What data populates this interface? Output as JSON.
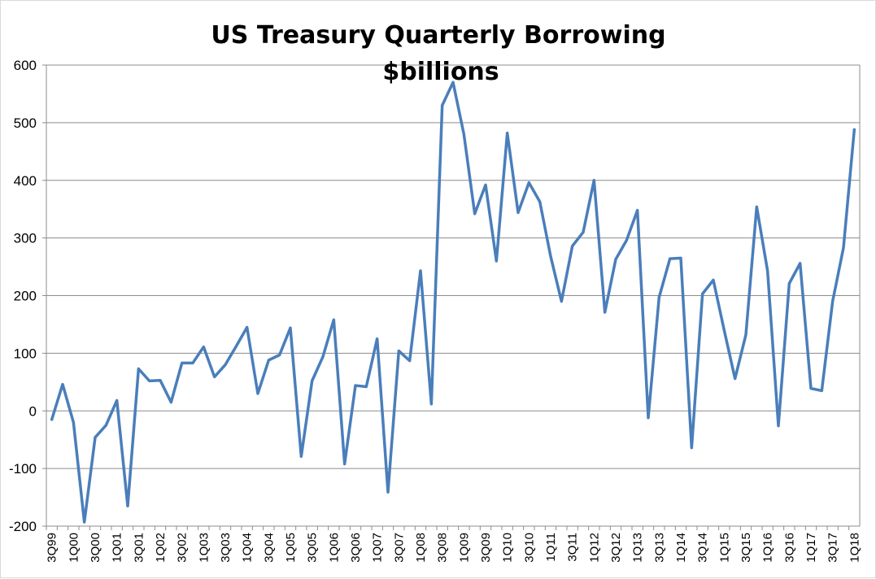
{
  "chart_data": {
    "type": "line",
    "title": "US Treasury Quarterly Borrowing",
    "subtitle": "$billions",
    "xlabel": "",
    "ylabel": "",
    "ylim": [
      -200,
      600
    ],
    "yticks": [
      -200,
      -100,
      0,
      100,
      200,
      300,
      400,
      500,
      600
    ],
    "grid": true,
    "legend": "none",
    "line_color": "#4a7ebb",
    "categories": [
      "3Q99",
      "4Q99",
      "1Q00",
      "2Q00",
      "3Q00",
      "4Q00",
      "1Q01",
      "2Q01",
      "3Q01",
      "4Q01",
      "1Q02",
      "2Q02",
      "3Q02",
      "4Q02",
      "1Q03",
      "2Q03",
      "3Q03",
      "4Q03",
      "1Q04",
      "2Q04",
      "3Q04",
      "4Q04",
      "1Q05",
      "2Q05",
      "3Q05",
      "4Q05",
      "1Q06",
      "2Q06",
      "3Q06",
      "4Q06",
      "1Q07",
      "2Q07",
      "3Q07",
      "4Q07",
      "1Q08",
      "2Q08",
      "3Q08",
      "4Q08",
      "1Q09",
      "2Q09",
      "3Q09",
      "4Q09",
      "1Q10",
      "2Q10",
      "3Q10",
      "4Q10",
      "1Q11",
      "2Q11",
      "3Q11",
      "4Q11",
      "1Q12",
      "2Q12",
      "3Q12",
      "4Q12",
      "1Q13",
      "2Q13",
      "3Q13",
      "4Q13",
      "1Q14",
      "2Q14",
      "3Q14",
      "4Q14",
      "1Q15",
      "2Q15",
      "3Q15",
      "4Q15",
      "1Q16",
      "2Q16",
      "3Q16",
      "4Q16",
      "1Q17",
      "2Q17",
      "3Q17",
      "4Q17",
      "1Q18"
    ],
    "tick_labels": [
      "3Q99",
      "1Q00",
      "3Q00",
      "1Q01",
      "3Q01",
      "1Q02",
      "3Q02",
      "1Q03",
      "3Q03",
      "1Q04",
      "3Q04",
      "1Q05",
      "3Q05",
      "1Q06",
      "3Q06",
      "1Q07",
      "3Q07",
      "1Q08",
      "3Q08",
      "1Q09",
      "3Q09",
      "1Q10",
      "3Q10",
      "1Q11",
      "3Q11",
      "1Q12",
      "3Q12",
      "1Q13",
      "3Q13",
      "1Q14",
      "3Q14",
      "1Q15",
      "3Q15",
      "1Q16",
      "3Q16",
      "1Q17",
      "3Q17",
      "1Q18"
    ],
    "values": [
      -15,
      46,
      -20,
      -193,
      -46,
      -25,
      18,
      -165,
      73,
      52,
      53,
      15,
      83,
      83,
      111,
      59,
      80,
      112,
      145,
      30,
      88,
      97,
      144,
      -79,
      52,
      94,
      158,
      -92,
      44,
      42,
      125,
      -141,
      104,
      87,
      243,
      12,
      530,
      570,
      480,
      342,
      392,
      260,
      482,
      344,
      396,
      363,
      268,
      190,
      286,
      310,
      400,
      171,
      263,
      296,
      348,
      -12,
      197,
      264,
      265,
      -64,
      203,
      227,
      140,
      56,
      132,
      354,
      243,
      -26,
      221,
      256,
      39,
      35,
      190,
      283,
      488
    ]
  }
}
